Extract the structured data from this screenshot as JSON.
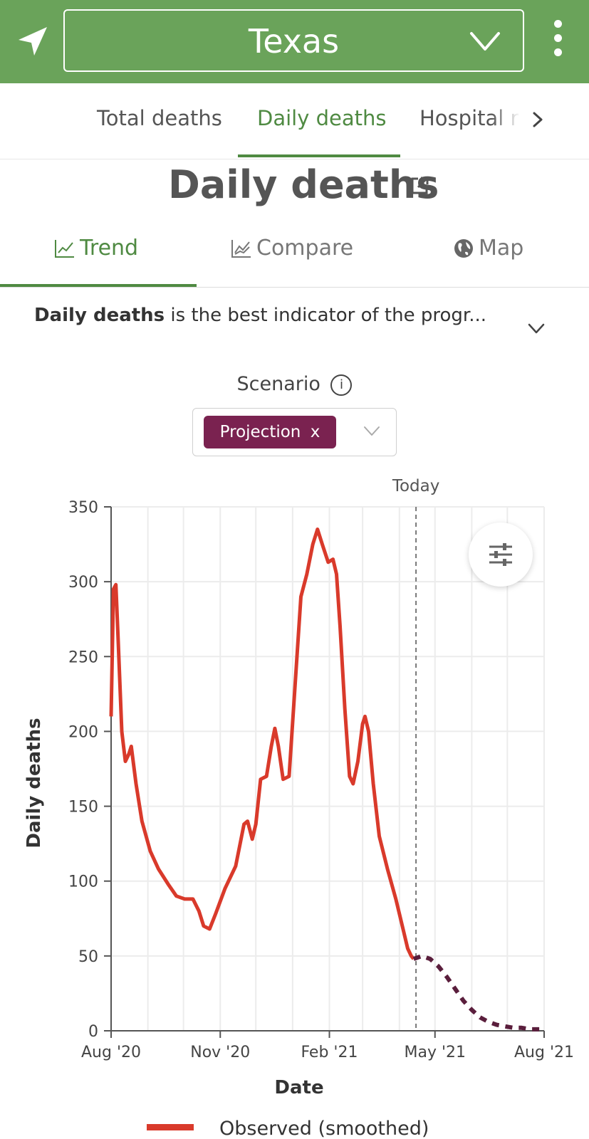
{
  "header": {
    "location_icon": "navigation-arrow-icon",
    "state": "Texas",
    "more_icon": "more-vertical-icon",
    "bg_color": "#6aa35a"
  },
  "top_tabs": [
    {
      "label": "Total deaths",
      "active": false
    },
    {
      "label": "Daily deaths",
      "active": true
    },
    {
      "label": "Hospital r",
      "active": false
    }
  ],
  "page": {
    "title": "Daily deaths",
    "title_icon": "external-link-icon"
  },
  "view_tabs": [
    {
      "label": "Trend",
      "icon": "line-chart-icon",
      "active": true
    },
    {
      "label": "Compare",
      "icon": "compare-chart-icon",
      "active": false
    },
    {
      "label": "Map",
      "icon": "globe-icon",
      "active": false
    }
  ],
  "description": {
    "bold": "Daily deaths",
    "rest": " is the best indicator of the progr..."
  },
  "scenario": {
    "label": "Scenario",
    "info_icon": "info-icon",
    "selected": "Projection",
    "remove_glyph": "x"
  },
  "chart_data": {
    "type": "line",
    "xlabel": "Date",
    "ylabel": "Daily deaths",
    "ylim": [
      0,
      350
    ],
    "yticks": [
      0,
      50,
      100,
      150,
      200,
      250,
      300,
      350
    ],
    "xticks": [
      "Aug '20",
      "Nov '20",
      "Feb '21",
      "May '21",
      "Aug '21"
    ],
    "xlim": [
      "2020-08-01",
      "2021-08-01"
    ],
    "today_label": "Today",
    "today": "2021-04-15",
    "grid": true,
    "legend": [
      {
        "label": "Observed (smoothed)",
        "color": "#d93a2b"
      }
    ],
    "series": [
      {
        "name": "Observed (smoothed)",
        "style": "solid",
        "color": "#d93a2b",
        "points": [
          [
            "2020-08-01",
            210
          ],
          [
            "2020-08-03",
            295
          ],
          [
            "2020-08-05",
            298
          ],
          [
            "2020-08-07",
            260
          ],
          [
            "2020-08-10",
            200
          ],
          [
            "2020-08-13",
            180
          ],
          [
            "2020-08-16",
            185
          ],
          [
            "2020-08-18",
            190
          ],
          [
            "2020-08-22",
            165
          ],
          [
            "2020-08-27",
            140
          ],
          [
            "2020-09-03",
            120
          ],
          [
            "2020-09-10",
            108
          ],
          [
            "2020-09-18",
            98
          ],
          [
            "2020-09-25",
            90
          ],
          [
            "2020-10-02",
            88
          ],
          [
            "2020-10-09",
            88
          ],
          [
            "2020-10-14",
            80
          ],
          [
            "2020-10-18",
            70
          ],
          [
            "2020-10-23",
            68
          ],
          [
            "2020-10-28",
            78
          ],
          [
            "2020-11-05",
            95
          ],
          [
            "2020-11-14",
            110
          ],
          [
            "2020-11-21",
            138
          ],
          [
            "2020-11-24",
            140
          ],
          [
            "2020-11-28",
            128
          ],
          [
            "2020-12-01",
            138
          ],
          [
            "2020-12-05",
            168
          ],
          [
            "2020-12-10",
            170
          ],
          [
            "2020-12-14",
            190
          ],
          [
            "2020-12-17",
            202
          ],
          [
            "2020-12-20",
            190
          ],
          [
            "2020-12-24",
            168
          ],
          [
            "2020-12-29",
            170
          ],
          [
            "2021-01-03",
            230
          ],
          [
            "2021-01-08",
            290
          ],
          [
            "2021-01-13",
            305
          ],
          [
            "2021-01-18",
            325
          ],
          [
            "2021-01-22",
            335
          ],
          [
            "2021-01-26",
            325
          ],
          [
            "2021-01-31",
            313
          ],
          [
            "2021-02-04",
            315
          ],
          [
            "2021-02-07",
            305
          ],
          [
            "2021-02-10",
            270
          ],
          [
            "2021-02-14",
            215
          ],
          [
            "2021-02-18",
            170
          ],
          [
            "2021-02-21",
            165
          ],
          [
            "2021-02-25",
            180
          ],
          [
            "2021-03-01",
            205
          ],
          [
            "2021-03-03",
            210
          ],
          [
            "2021-03-06",
            200
          ],
          [
            "2021-03-10",
            165
          ],
          [
            "2021-03-15",
            130
          ],
          [
            "2021-03-22",
            108
          ],
          [
            "2021-03-29",
            88
          ],
          [
            "2021-04-05",
            65
          ],
          [
            "2021-04-08",
            55
          ],
          [
            "2021-04-11",
            50
          ],
          [
            "2021-04-13",
            48
          ]
        ]
      },
      {
        "name": "Projection",
        "style": "dashed",
        "color": "#5a1e3c",
        "points": [
          [
            "2021-04-13",
            48
          ],
          [
            "2021-04-20",
            50
          ],
          [
            "2021-04-27",
            48
          ],
          [
            "2021-05-04",
            43
          ],
          [
            "2021-05-11",
            36
          ],
          [
            "2021-05-18",
            28
          ],
          [
            "2021-05-25",
            20
          ],
          [
            "2021-06-01",
            14
          ],
          [
            "2021-06-08",
            9
          ],
          [
            "2021-06-15",
            6
          ],
          [
            "2021-06-22",
            4
          ],
          [
            "2021-06-29",
            3
          ],
          [
            "2021-07-06",
            2
          ],
          [
            "2021-07-13",
            2
          ],
          [
            "2021-07-20",
            1
          ],
          [
            "2021-07-27",
            1
          ],
          [
            "2021-08-01",
            1
          ]
        ]
      }
    ]
  },
  "chart_controls": {
    "filter_icon": "sliders-icon"
  }
}
